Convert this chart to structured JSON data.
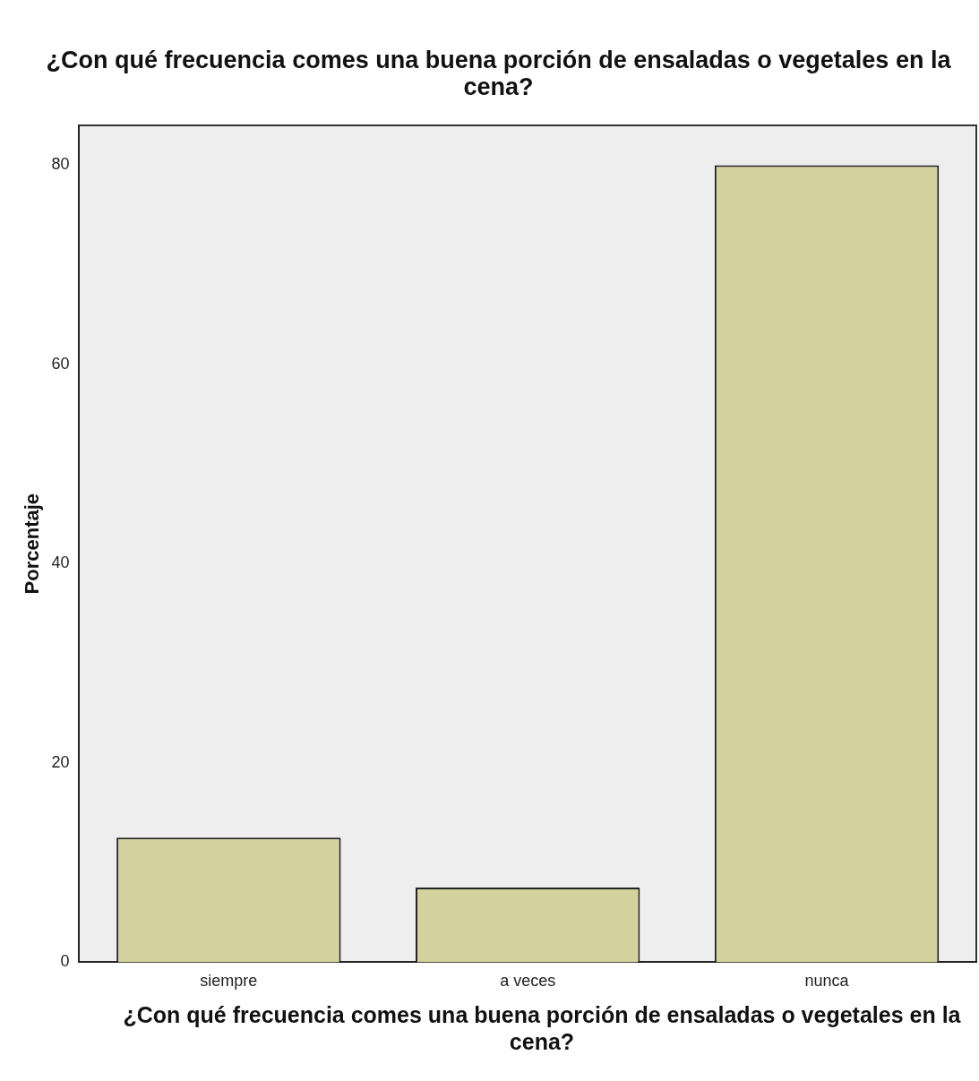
{
  "chart_data": {
    "type": "bar",
    "title": "¿Con qué frecuencia comes una buena porción de ensaladas o vegetales en la cena?",
    "xlabel": "¿Con qué frecuencia comes una buena porción de ensaladas o vegetales en la cena?",
    "ylabel": "Porcentaje",
    "categories": [
      "siempre",
      "a veces",
      "nunca"
    ],
    "values": [
      12.5,
      7.5,
      80
    ],
    "color": "#d3d19e",
    "ylim": [
      0,
      84
    ],
    "yticks": [
      0,
      20,
      40,
      60,
      80
    ],
    "grid": false,
    "legend": false
  }
}
